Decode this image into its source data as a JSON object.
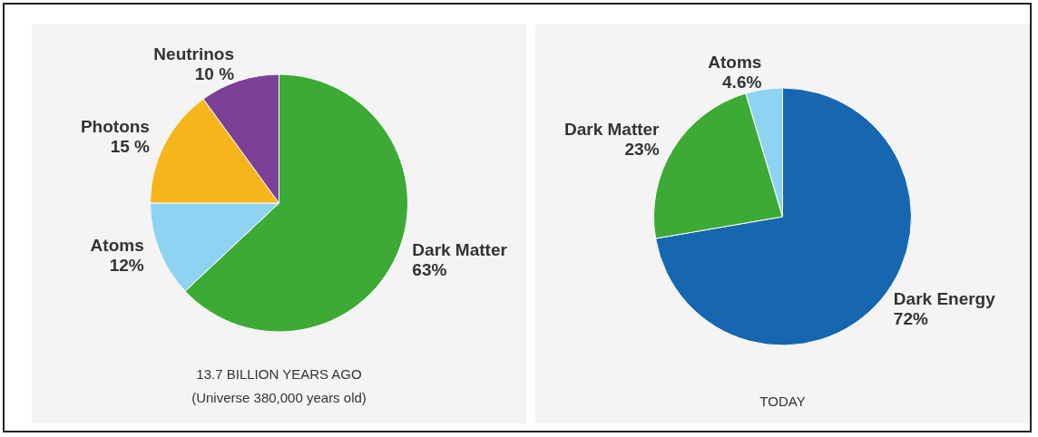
{
  "chart_data": [
    {
      "type": "pie",
      "title": "13.7 BILLION YEARS AGO",
      "subtitle": "(Universe 380,000 years old)",
      "categories": [
        "Dark Matter",
        "Atoms",
        "Photons",
        "Neutrinos"
      ],
      "values": [
        63,
        12,
        15,
        10
      ],
      "colors": [
        "#3daa35",
        "#8fd3f2",
        "#f6b51a",
        "#7c4196"
      ],
      "value_labels": [
        "63%",
        "12%",
        "15 %",
        "10 %"
      ]
    },
    {
      "type": "pie",
      "title": "TODAY",
      "categories": [
        "Dark Energy",
        "Dark Matter",
        "Atoms"
      ],
      "values": [
        72,
        23,
        4.6
      ],
      "colors": [
        "#1766b0",
        "#3daa35",
        "#8fd3f2"
      ],
      "value_labels": [
        "72%",
        "23%",
        "4.6%"
      ]
    }
  ]
}
